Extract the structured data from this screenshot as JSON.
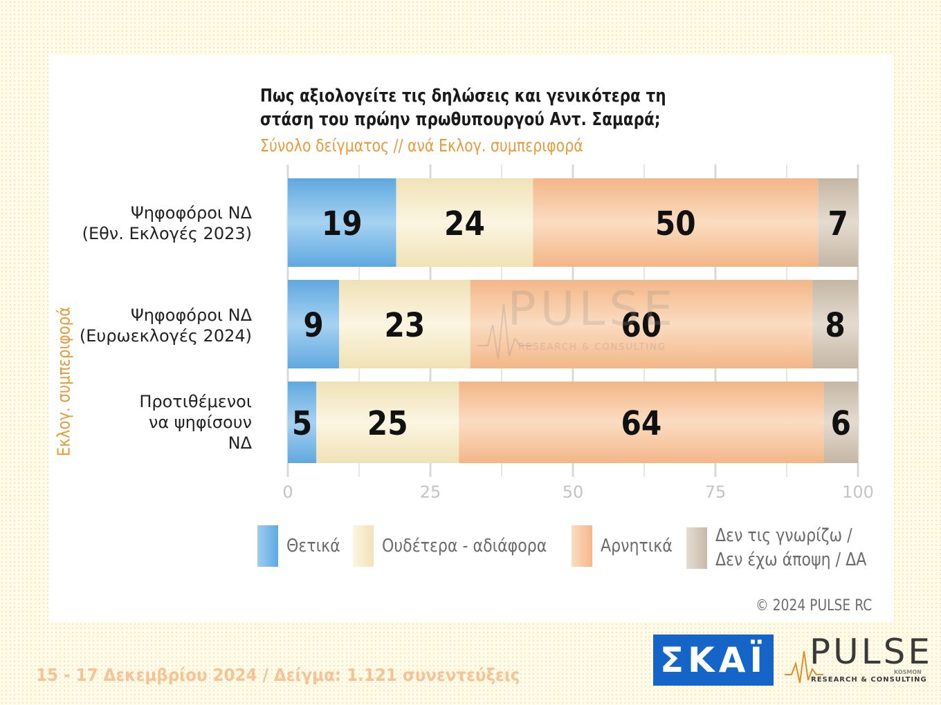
{
  "title_line1": "Πως αξιολογείτε τις δηλώσεις και γενικότερα τη",
  "title_line2": "στάση του πρώην πρωθυπουργού Αντ. Σαμαρά;",
  "subtitle": "Σύνολο δείγματος // ανά Εκλογ. συμπεριφορά",
  "y_axis_label": "Εκλογ. συμπεριφορά",
  "copyright": "©  2024  PULSE RC",
  "footer": "15 - 17 Δεκεμβρίου 2024  /  Δείγμα:  1.121 συνεντεύξεις",
  "logos": {
    "skai": "ΣΚΑΪ",
    "pulse": "PULSE",
    "pulse_sub": "RESEARCH & CONSULTING",
    "pulse_kosmon": "KOSMON"
  },
  "watermark": {
    "word": "PULSE",
    "sub": "RESEARCH & CONSULTING"
  },
  "legend": [
    {
      "label": "Θετικά",
      "color": "#74b6e6"
    },
    {
      "label": "Ουδέτερα - αδιάφορα",
      "color": "#f7eccb"
    },
    {
      "label": "Αρνητικά",
      "color": "#f7c9a2"
    },
    {
      "label": "Δεν τις γνωρίζω / Δεν έχω άποψη / ΔΑ",
      "line1": "Δεν τις γνωρίζω /",
      "line2": "Δεν έχω άποψη / ΔΑ",
      "color": "#d8cbbd"
    }
  ],
  "chart_data": {
    "type": "bar",
    "orientation": "horizontal",
    "stacked": true,
    "title": "Πως αξιολογείτε τις δηλώσεις και γενικότερα τη στάση του πρώην πρωθυπουργού Αντ. Σαμαρά;",
    "subtitle": "Σύνολο δείγματος // ανά Εκλογ. συμπεριφορά",
    "ylabel": "Εκλογ. συμπεριφορά",
    "xlim": [
      0,
      100
    ],
    "xticks": [
      0,
      25,
      50,
      75,
      100
    ],
    "grid": true,
    "legend_position": "bottom",
    "categories": [
      [
        "Ψηφοφόροι ΝΔ",
        "(Εθν. Εκλογές 2023)"
      ],
      [
        "Ψηφοφόροι ΝΔ",
        "(Ευρωεκλογές 2024)"
      ],
      [
        "Προτιθέμενοι",
        "να ψηφίσουν",
        "ΝΔ"
      ]
    ],
    "series": [
      {
        "name": "Θετικά",
        "values": [
          19,
          9,
          5
        ],
        "color": "#74b6e6"
      },
      {
        "name": "Ουδέτερα - αδιάφορα",
        "values": [
          24,
          23,
          25
        ],
        "color": "#f7eccb"
      },
      {
        "name": "Αρνητικά",
        "values": [
          50,
          60,
          64
        ],
        "color": "#f7c9a2"
      },
      {
        "name": "Δεν τις γνωρίζω / Δεν έχω άποψη / ΔΑ",
        "values": [
          7,
          8,
          6
        ],
        "color": "#d8cbbd"
      }
    ]
  }
}
